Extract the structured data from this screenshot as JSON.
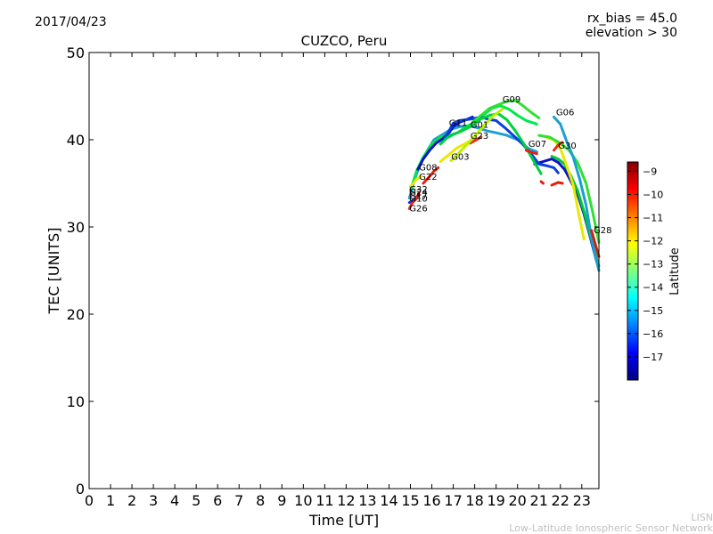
{
  "header": {
    "date": "2017/04/23",
    "rx_bias": "rx_bias = 45.0",
    "elevation": "elevation > 30"
  },
  "footer": {
    "line1": "LISN",
    "line2": "Low-Latitude Ionospheric Sensor Network"
  },
  "chart_data": {
    "type": "scatter",
    "title": "CUZCO, Peru",
    "xlabel": "Time [UT]",
    "ylabel": "TEC [UNITS]",
    "xlim": [
      0,
      23.8
    ],
    "ylim": [
      0,
      50
    ],
    "x_ticks": [
      "0",
      "1",
      "2",
      "3",
      "4",
      "5",
      "6",
      "7",
      "8",
      "9",
      "10",
      "11",
      "12",
      "13",
      "14",
      "15",
      "16",
      "17",
      "18",
      "19",
      "20",
      "21",
      "22",
      "23"
    ],
    "y_ticks": [
      "0",
      "10",
      "20",
      "30",
      "40",
      "50"
    ],
    "grid": false,
    "colorbar": {
      "label": "Latitude",
      "range": [
        -18,
        -8.6
      ],
      "ticks": [
        "-9",
        "-10",
        "-11",
        "-12",
        "-13",
        "-14",
        "-15",
        "-16",
        "-17"
      ],
      "colormap": "jet",
      "colors": [
        "#00007f",
        "#0000ff",
        "#007fff",
        "#00ffff",
        "#7fff7f",
        "#ffff00",
        "#ff7f00",
        "#ff0000",
        "#7f0000"
      ]
    },
    "series": [
      {
        "name": "G32",
        "label_at": [
          14.95,
          34.0
        ],
        "color": "#1a9fd0",
        "points": [
          [
            14.95,
            33.3
          ],
          [
            15.2,
            35.5
          ],
          [
            15.5,
            37.5
          ],
          [
            15.8,
            38.8
          ],
          [
            16.1,
            40.0
          ],
          [
            16.5,
            40.6
          ],
          [
            16.9,
            41.2
          ],
          [
            17.3,
            41.5
          ],
          [
            17.7,
            41.6
          ],
          [
            18.1,
            41.4
          ],
          [
            18.6,
            41.0
          ],
          [
            19.0,
            40.8
          ],
          [
            19.5,
            40.5
          ],
          [
            20.0,
            40.0
          ],
          [
            20.5,
            39.0
          ],
          [
            20.9,
            38.6
          ]
        ]
      },
      {
        "name": "G24",
        "label_at": [
          14.95,
          33.6
        ],
        "color": "#00e84a",
        "points": [
          [
            15.0,
            34.2
          ],
          [
            15.3,
            36.5
          ],
          [
            15.6,
            38.0
          ],
          [
            16.0,
            39.5
          ],
          [
            16.4,
            40.3
          ],
          [
            16.8,
            40.5
          ],
          [
            17.2,
            40.8
          ],
          [
            17.6,
            41.5
          ],
          [
            18.0,
            42.0
          ],
          [
            18.4,
            42.8
          ],
          [
            18.8,
            43.6
          ],
          [
            19.2,
            43.9
          ],
          [
            19.6,
            43.5
          ],
          [
            20.0,
            42.8
          ],
          [
            20.4,
            42.2
          ],
          [
            20.9,
            41.8
          ]
        ]
      },
      {
        "name": "G17",
        "label_at": [
          14.95,
          33.2
        ],
        "color": "#e8e800",
        "points": [
          [
            15.0,
            34.6
          ],
          [
            15.3,
            35.5
          ],
          [
            15.5,
            35.8
          ]
        ]
      },
      {
        "name": "G10",
        "label_at": [
          14.95,
          32.9
        ],
        "color": "#1530d8",
        "points": [
          [
            14.95,
            32.8
          ],
          [
            15.2,
            33.2
          ],
          [
            15.4,
            33.7
          ]
        ]
      },
      {
        "name": "G26",
        "label_at": [
          14.95,
          31.8
        ],
        "color": "#e82a10",
        "points": [
          [
            14.95,
            32.1
          ],
          [
            15.1,
            32.8
          ],
          [
            15.3,
            33.3
          ],
          [
            15.4,
            33.9
          ]
        ]
      },
      {
        "name": "G08",
        "label_at": [
          15.4,
          36.5
        ],
        "color": "#0a10c8",
        "points": [
          [
            15.35,
            36.6
          ],
          [
            15.6,
            37.8
          ],
          [
            15.9,
            38.8
          ],
          [
            16.2,
            39.6
          ],
          [
            16.5,
            40.1
          ],
          [
            16.8,
            40.8
          ],
          [
            17.0,
            41.5
          ],
          [
            17.3,
            42.0
          ],
          [
            17.6,
            42.3
          ],
          [
            17.9,
            42.6
          ]
        ]
      },
      {
        "name": "G22",
        "label_at": [
          15.4,
          35.4
        ],
        "color": "#e82010",
        "points": [
          [
            15.6,
            35.0
          ],
          [
            15.9,
            35.8
          ],
          [
            16.1,
            36.4
          ],
          [
            16.3,
            36.8
          ]
        ]
      },
      {
        "name": "G11",
        "label_at": [
          16.8,
          41.6
        ],
        "color": "#0a40e0",
        "points": [
          [
            16.6,
            40.2
          ],
          [
            16.8,
            41.0
          ],
          [
            17.0,
            41.9
          ],
          [
            17.3,
            42.2
          ],
          [
            17.6,
            42.3
          ],
          [
            17.9,
            42.4
          ],
          [
            18.3,
            42.6
          ],
          [
            18.7,
            42.3
          ],
          [
            19.0,
            42.2
          ],
          [
            19.4,
            41.4
          ],
          [
            19.8,
            40.5
          ],
          [
            20.2,
            39.6
          ],
          [
            20.6,
            38.5
          ],
          [
            21.0,
            37.2
          ],
          [
            21.4,
            37.0
          ],
          [
            21.7,
            36.8
          ],
          [
            21.9,
            36.2
          ]
        ]
      },
      {
        "name": "G01",
        "label_at": [
          17.8,
          41.4
        ],
        "color": "#00d040",
        "points": [
          [
            16.4,
            39.5
          ],
          [
            16.7,
            40.2
          ],
          [
            17.0,
            40.6
          ],
          [
            17.4,
            41.0
          ],
          [
            17.8,
            41.5
          ],
          [
            18.3,
            42.4
          ],
          [
            18.7,
            42.8
          ],
          [
            19.1,
            43.0
          ],
          [
            19.5,
            42.3
          ],
          [
            19.9,
            41.0
          ],
          [
            20.3,
            39.5
          ],
          [
            20.7,
            37.8
          ],
          [
            21.1,
            36.1
          ]
        ]
      },
      {
        "name": "G23",
        "label_at": [
          17.8,
          40.1
        ],
        "color": "#e82a10",
        "points": [
          [
            17.8,
            39.6
          ],
          [
            18.0,
            39.9
          ],
          [
            18.3,
            40.3
          ]
        ]
      },
      {
        "name": "G03",
        "label_at": [
          16.9,
          37.7
        ],
        "color": "#b8f000",
        "points": [
          [
            16.9,
            37.6
          ],
          [
            17.3,
            38.6
          ],
          [
            17.7,
            39.6
          ],
          [
            18.1,
            40.7
          ],
          [
            18.5,
            41.8
          ],
          [
            18.9,
            42.8
          ],
          [
            19.3,
            43.5
          ]
        ]
      },
      {
        "name": "G09",
        "label_at": [
          19.3,
          44.3
        ],
        "color": "#30e030",
        "points": [
          [
            17.9,
            42.0
          ],
          [
            18.3,
            42.8
          ],
          [
            18.7,
            43.6
          ],
          [
            19.1,
            44.0
          ],
          [
            19.5,
            44.4
          ],
          [
            19.9,
            44.5
          ],
          [
            20.2,
            44.0
          ],
          [
            20.6,
            43.2
          ],
          [
            21.0,
            42.5
          ]
        ]
      },
      {
        "name": "G07",
        "label_at": [
          20.5,
          39.2
        ],
        "color": "#e82010",
        "points": [
          [
            20.4,
            38.8
          ],
          [
            20.6,
            38.6
          ],
          [
            20.9,
            38.4
          ]
        ]
      },
      {
        "name": "G06",
        "label_at": [
          21.8,
          42.8
        ],
        "color": "#1a9fd0",
        "points": [
          [
            21.7,
            42.6
          ],
          [
            22.0,
            41.8
          ],
          [
            22.3,
            39.8
          ],
          [
            22.6,
            38.0
          ],
          [
            22.9,
            35.5
          ],
          [
            23.2,
            32.5
          ],
          [
            23.4,
            29.5
          ],
          [
            23.6,
            27.0
          ],
          [
            23.8,
            25.0
          ]
        ]
      },
      {
        "name": "G30",
        "label_at": [
          21.9,
          39.0
        ],
        "color": "#e82a10",
        "points": [
          [
            21.7,
            38.8
          ],
          [
            21.9,
            39.4
          ],
          [
            22.1,
            39.7
          ]
        ]
      },
      {
        "name": "G28",
        "label_at": [
          23.55,
          29.3
        ],
        "color": "#d02010",
        "points": [
          [
            23.45,
            29.6
          ],
          [
            23.6,
            28.3
          ],
          [
            23.8,
            26.6
          ]
        ]
      }
    ],
    "extra_traces": [
      {
        "color": "#0a10c8",
        "points": [
          [
            20.8,
            37.2
          ],
          [
            21.2,
            37.5
          ],
          [
            21.6,
            37.8
          ],
          [
            21.9,
            37.4
          ],
          [
            22.2,
            36.6
          ],
          [
            22.5,
            35.2
          ],
          [
            22.8,
            33.8
          ],
          [
            23.1,
            31.5
          ],
          [
            23.4,
            28.8
          ],
          [
            23.7,
            26.0
          ]
        ]
      },
      {
        "color": "#00c838",
        "points": [
          [
            21.6,
            38.1
          ],
          [
            21.9,
            37.8
          ],
          [
            22.2,
            37.2
          ],
          [
            22.5,
            35.8
          ],
          [
            22.8,
            34.2
          ],
          [
            23.1,
            31.8
          ],
          [
            23.4,
            29.0
          ],
          [
            23.6,
            27.2
          ],
          [
            23.8,
            25.5
          ]
        ]
      },
      {
        "color": "#e8e800",
        "points": [
          [
            21.4,
            40.2
          ],
          [
            21.7,
            40.0
          ],
          [
            22.0,
            39.0
          ],
          [
            22.3,
            37.0
          ],
          [
            22.6,
            34.8
          ],
          [
            22.9,
            31.0
          ],
          [
            23.1,
            28.6
          ]
        ]
      },
      {
        "color": "#30e030",
        "points": [
          [
            21.0,
            40.5
          ],
          [
            21.5,
            40.3
          ],
          [
            22.0,
            39.6
          ],
          [
            22.4,
            38.8
          ],
          [
            22.8,
            37.4
          ],
          [
            23.2,
            35.0
          ],
          [
            23.5,
            31.8
          ],
          [
            23.8,
            28.2
          ]
        ]
      },
      {
        "color": "#e82010",
        "points": [
          [
            21.1,
            35.2
          ],
          [
            21.2,
            35.0
          ]
        ]
      },
      {
        "color": "#e82010",
        "points": [
          [
            21.6,
            34.8
          ],
          [
            21.9,
            35.1
          ],
          [
            22.1,
            35.0
          ]
        ]
      },
      {
        "color": "#e8e800",
        "points": [
          [
            16.4,
            37.5
          ],
          [
            16.8,
            38.3
          ],
          [
            17.2,
            39.1
          ],
          [
            17.6,
            39.6
          ],
          [
            18.0,
            40.2
          ]
        ]
      }
    ]
  }
}
